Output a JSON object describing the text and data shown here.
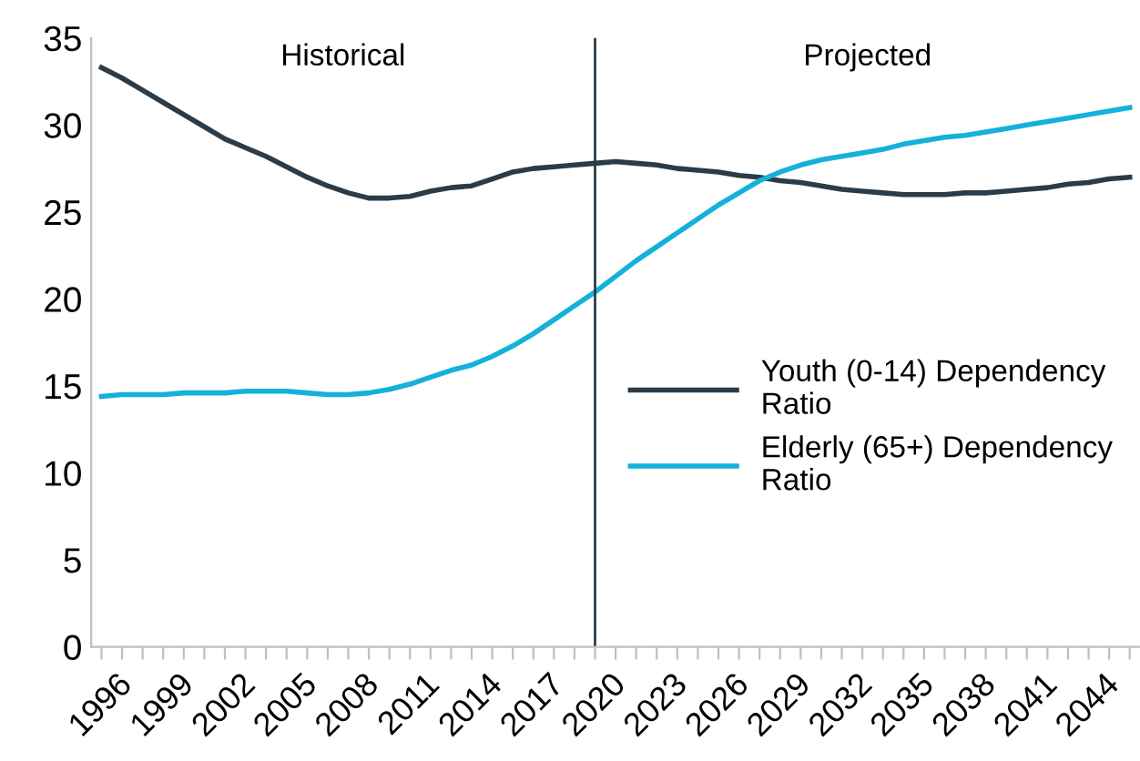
{
  "chart_data": {
    "type": "line",
    "categories": [
      "1996",
      null,
      null,
      "1999",
      null,
      null,
      "2002",
      null,
      null,
      "2005",
      null,
      null,
      "2008",
      null,
      null,
      "2011",
      null,
      null,
      "2014",
      null,
      null,
      "2017",
      null,
      null,
      "2020",
      null,
      null,
      "2023",
      null,
      null,
      "2026",
      null,
      null,
      "2029",
      null,
      null,
      "2032",
      null,
      null,
      "2035",
      null,
      null,
      "2038",
      null,
      null,
      "2041",
      null,
      null,
      "2044",
      null,
      null
    ],
    "series": [
      {
        "name": "Youth (0-14) Dependency Ratio",
        "color": "#2b3c48",
        "values": [
          33.3,
          32.7,
          32.0,
          31.3,
          30.6,
          29.9,
          29.2,
          28.7,
          28.2,
          27.6,
          27.0,
          26.5,
          26.1,
          25.8,
          25.8,
          25.9,
          26.2,
          26.4,
          26.5,
          26.9,
          27.3,
          27.5,
          27.6,
          27.7,
          27.8,
          27.9,
          27.8,
          27.7,
          27.5,
          27.4,
          27.3,
          27.1,
          27.0,
          26.8,
          26.7,
          26.5,
          26.3,
          26.2,
          26.1,
          26.0,
          26.0,
          26.0,
          26.1,
          26.1,
          26.2,
          26.3,
          26.4,
          26.6,
          26.7,
          26.9,
          27.0
        ]
      },
      {
        "name": "Elderly (65+) Dependency Ratio",
        "color": "#14b1d9",
        "values": [
          14.4,
          14.5,
          14.5,
          14.5,
          14.6,
          14.6,
          14.6,
          14.7,
          14.7,
          14.7,
          14.6,
          14.5,
          14.5,
          14.6,
          14.8,
          15.1,
          15.5,
          15.9,
          16.2,
          16.7,
          17.3,
          18.0,
          18.8,
          19.6,
          20.4,
          21.3,
          22.2,
          23.0,
          23.8,
          24.6,
          25.4,
          26.1,
          26.8,
          27.3,
          27.7,
          28.0,
          28.2,
          28.4,
          28.6,
          28.9,
          29.1,
          29.3,
          29.4,
          29.6,
          29.8,
          30.0,
          30.2,
          30.4,
          30.6,
          30.8,
          31.0
        ]
      }
    ],
    "ylim": [
      0,
      35
    ],
    "yticks": [
      0,
      5,
      10,
      15,
      20,
      25,
      30,
      35
    ],
    "ref_lines": [
      {
        "axis": "x",
        "value": "2020",
        "color": "#2b3c48"
      }
    ],
    "annotations": [
      "Historical",
      "Projected"
    ],
    "legend": "right",
    "grid": false,
    "marker": "none",
    "line_style": "solid"
  }
}
